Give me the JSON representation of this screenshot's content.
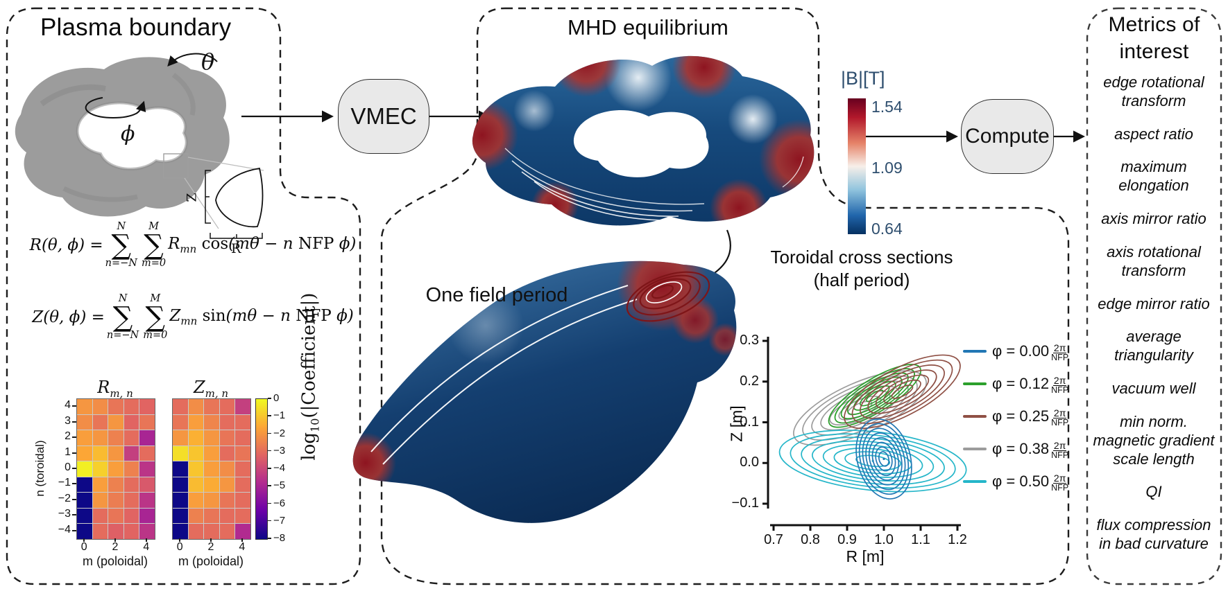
{
  "panels": {
    "plasma_boundary": {
      "title": "Plasma boundary"
    },
    "mhd_equilibrium": {
      "title": "MHD equilibrium"
    },
    "metrics": {
      "title": "Metrics of interest"
    }
  },
  "nodes": {
    "vmec": "VMEC",
    "compute": "Compute"
  },
  "plasma_panel": {
    "torus_labels": {
      "theta": "θ",
      "phi": "ϕ",
      "inset_z": "Z",
      "inset_r": "R"
    },
    "equations": {
      "R": {
        "lhs_var": "R",
        "lhs_rest": "(θ, ϕ) =",
        "sum1_top": "N",
        "sum1_bot": "n=−N",
        "sum2_top": "M",
        "sum2_bot": "m=0",
        "coef": "R",
        "coef_sub": "mn",
        "fn": "cos",
        "arg_pre": "(mθ − n ",
        "nfp": "NFP",
        "arg_post": " ϕ)"
      },
      "Z": {
        "lhs_var": "Z",
        "lhs_rest": "(θ, ϕ) =",
        "sum1_top": "N",
        "sum1_bot": "n=−N",
        "sum2_top": "M",
        "sum2_bot": "m=0",
        "coef": "Z",
        "coef_sub": "mn",
        "fn": "sin",
        "arg_pre": "(mθ − n ",
        "nfp": "NFP",
        "arg_post": " ϕ)"
      }
    },
    "heatmap_ui": {
      "r_title_base": "R",
      "z_title_base": "Z",
      "title_sub": "m, n",
      "ylabel": "n (toroidal)",
      "xlabel": "m (poloidal)",
      "yticks": [
        "4",
        "3",
        "2",
        "1",
        "0",
        "−1",
        "−2",
        "−3",
        "−4"
      ],
      "xticks": [
        "0",
        "2",
        "4"
      ],
      "colorbar_ticks": [
        "0",
        "−1",
        "−2",
        "−3",
        "−4",
        "−5",
        "−6",
        "−7",
        "−8"
      ],
      "colorbar_label_pre": "log",
      "colorbar_label_sub": "10",
      "colorbar_label_post": "(|Coefficient|)"
    }
  },
  "mhd_panel": {
    "one_field_period": "One field period",
    "bfield_colorbar": {
      "title": "|B|[T]",
      "ticks": [
        "1.54",
        "1.09",
        "0.64"
      ],
      "label_color": "#2e4e6e"
    },
    "cross_sections": {
      "title": "Toroidal cross sections",
      "subtitle": "(half period)",
      "xlabel": "R [m]",
      "ylabel": "Z [m]",
      "xtick_labels": [
        "0.7",
        "0.8",
        "0.9",
        "1.0",
        "1.1",
        "1.2"
      ],
      "ytick_labels": [
        "0.3",
        "0.2",
        "0.1",
        "0.0",
        "−0.1"
      ],
      "legend": [
        {
          "color": "#2277b4",
          "phi": "φ = 0.00",
          "frac_top": "2π",
          "frac_bot": "NFP"
        },
        {
          "color": "#2ca02c",
          "phi": "φ = 0.12",
          "frac_top": "2π",
          "frac_bot": "NFP"
        },
        {
          "color": "#8f5045",
          "phi": "φ = 0.25",
          "frac_top": "2π",
          "frac_bot": "NFP"
        },
        {
          "color": "#9c9c9c",
          "phi": "φ = 0.38",
          "frac_top": "2π",
          "frac_bot": "NFP"
        },
        {
          "color": "#25b6c9",
          "phi": "φ = 0.50",
          "frac_top": "2π",
          "frac_bot": "NFP"
        }
      ]
    }
  },
  "metrics_panel": {
    "metrics": [
      "edge rotational transform",
      "aspect ratio",
      "maximum elongation",
      "axis mirror ratio",
      "axis rotational transform",
      "edge mirror ratio",
      "average triangularity",
      "vacuum well",
      "min norm. magnetic gradient scale length",
      "QI",
      "flux compression in bad curvature"
    ]
  },
  "chart_data": [
    {
      "type": "heatmap",
      "title": "R_{m,n}",
      "xlabel": "m (poloidal)",
      "ylabel": "n (toroidal)",
      "x": [
        0,
        1,
        2,
        3,
        4
      ],
      "y": [
        4,
        3,
        2,
        1,
        0,
        -1,
        -2,
        -3,
        -4
      ],
      "colorbar_label": "log10(|Coefficient|)",
      "colorbar_range": [
        0,
        -8
      ],
      "values": [
        [
          -2.0,
          -2.2,
          -2.8,
          -3.0,
          -3.2
        ],
        [
          -2.2,
          -2.8,
          -2.0,
          -3.2,
          -2.8
        ],
        [
          -1.8,
          -2.0,
          -2.5,
          -3.0,
          -5.0
        ],
        [
          -1.6,
          -1.2,
          -2.0,
          -4.2,
          -3.0
        ],
        [
          -0.2,
          -0.8,
          -1.8,
          -2.5,
          -4.5
        ],
        [
          -8.0,
          -1.8,
          -2.5,
          -3.0,
          -3.5
        ],
        [
          -8.0,
          -2.0,
          -2.6,
          -3.0,
          -4.5
        ],
        [
          -8.0,
          -3.0,
          -2.8,
          -3.2,
          -5.0
        ],
        [
          -8.0,
          -3.0,
          -3.3,
          -3.2,
          -4.5
        ]
      ]
    },
    {
      "type": "heatmap",
      "title": "Z_{m,n}",
      "xlabel": "m (poloidal)",
      "ylabel": "n (toroidal)",
      "x": [
        0,
        1,
        2,
        3,
        4
      ],
      "y": [
        4,
        3,
        2,
        1,
        0,
        -1,
        -2,
        -3,
        -4
      ],
      "colorbar_label": "log10(|Coefficient|)",
      "colorbar_range": [
        0,
        -8
      ],
      "values": [
        [
          -3.0,
          -2.2,
          -2.8,
          -3.0,
          -4.2
        ],
        [
          -2.8,
          -1.8,
          -2.4,
          -3.0,
          -3.0
        ],
        [
          -2.0,
          -1.4,
          -2.0,
          -2.8,
          -3.0
        ],
        [
          -0.5,
          -1.0,
          -1.8,
          -3.0,
          -2.8
        ],
        [
          -8.0,
          -1.0,
          -1.8,
          -2.2,
          -3.0
        ],
        [
          -8.0,
          -1.2,
          -1.5,
          -2.0,
          -3.0
        ],
        [
          -8.0,
          -1.8,
          -2.0,
          -2.8,
          -3.0
        ],
        [
          -8.0,
          -2.5,
          -2.8,
          -3.0,
          -3.0
        ],
        [
          -8.0,
          -3.0,
          -3.0,
          -3.0,
          -4.8
        ]
      ]
    },
    {
      "type": "line",
      "title": "Toroidal cross sections (half period)",
      "xlabel": "R [m]",
      "ylabel": "Z [m]",
      "xlim": [
        0.7,
        1.2
      ],
      "ylim": [
        -0.1,
        0.3
      ],
      "xticks": [
        0.7,
        0.8,
        0.9,
        1.0,
        1.1,
        1.2
      ],
      "yticks": [
        0.3,
        0.2,
        0.1,
        0.0,
        -0.1
      ],
      "legend_position": "right",
      "series_note": "nested flux-surface cross sections at five toroidal angles",
      "families": [
        {
          "name": "phi-0.38-2pi-NFP",
          "color": "#9c9c9c",
          "R": 0.935,
          "Z": 0.135,
          "rot": -24,
          "rx": 0.195,
          "ry": 0.062,
          "n": 7,
          "dot": false
        },
        {
          "name": "phi-0.12-2pi-NFP",
          "color": "#2ca02c",
          "R": 0.975,
          "Z": 0.165,
          "rot": -32,
          "rx": 0.145,
          "ry": 0.04,
          "n": 7,
          "dot": false
        },
        {
          "name": "phi-0.25-2pi-NFP",
          "color": "#8f5045",
          "R": 1.05,
          "Z": 0.175,
          "rot": -28,
          "rx": 0.175,
          "ry": 0.058,
          "n": 7,
          "dot": false
        },
        {
          "name": "phi-0.50-2pi-NFP",
          "color": "#25b6c9",
          "R": 0.97,
          "Z": 0.005,
          "rot": 6,
          "rx": 0.255,
          "ry": 0.072,
          "n": 8,
          "dot": true
        },
        {
          "name": "phi-0.00-2pi-NFP",
          "color": "#2277b4",
          "R": 1.0,
          "Z": 0.01,
          "rot": -15,
          "rx": 0.072,
          "ry": 0.1,
          "n": 8,
          "dot": true
        }
      ]
    }
  ],
  "bfield_colorbar_chart": {
    "type": "colorbar",
    "title": "|B|[T]",
    "ticks": [
      1.54,
      1.09,
      0.64
    ],
    "cmap": "RdBu_r"
  }
}
